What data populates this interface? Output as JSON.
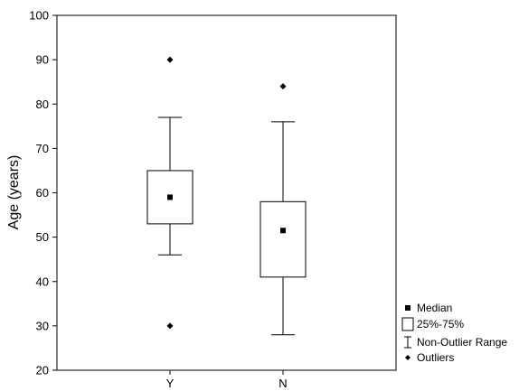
{
  "chart_data": {
    "type": "boxplot",
    "title": "",
    "xlabel": "",
    "ylabel": "Age (years)",
    "ylim": [
      20,
      100
    ],
    "yticks": [
      "20",
      "30",
      "40",
      "50",
      "60",
      "70",
      "80",
      "90",
      "100"
    ],
    "grid": false,
    "legend_position": "bottom-right",
    "categories": [
      "Y",
      "N"
    ],
    "series": [
      {
        "category": "Y",
        "median": 59,
        "q1": 53,
        "q3": 65,
        "whisker_low": 46,
        "whisker_high": 77,
        "outliers": [
          90,
          30
        ]
      },
      {
        "category": "N",
        "median": 51.5,
        "q1": 41,
        "q3": 58,
        "whisker_low": 28,
        "whisker_high": 76,
        "outliers": [
          84
        ]
      }
    ],
    "legend": {
      "median": "Median",
      "box": "25%-75%",
      "whisker": "Non-Outlier Range",
      "outliers": "Outliers"
    }
  }
}
